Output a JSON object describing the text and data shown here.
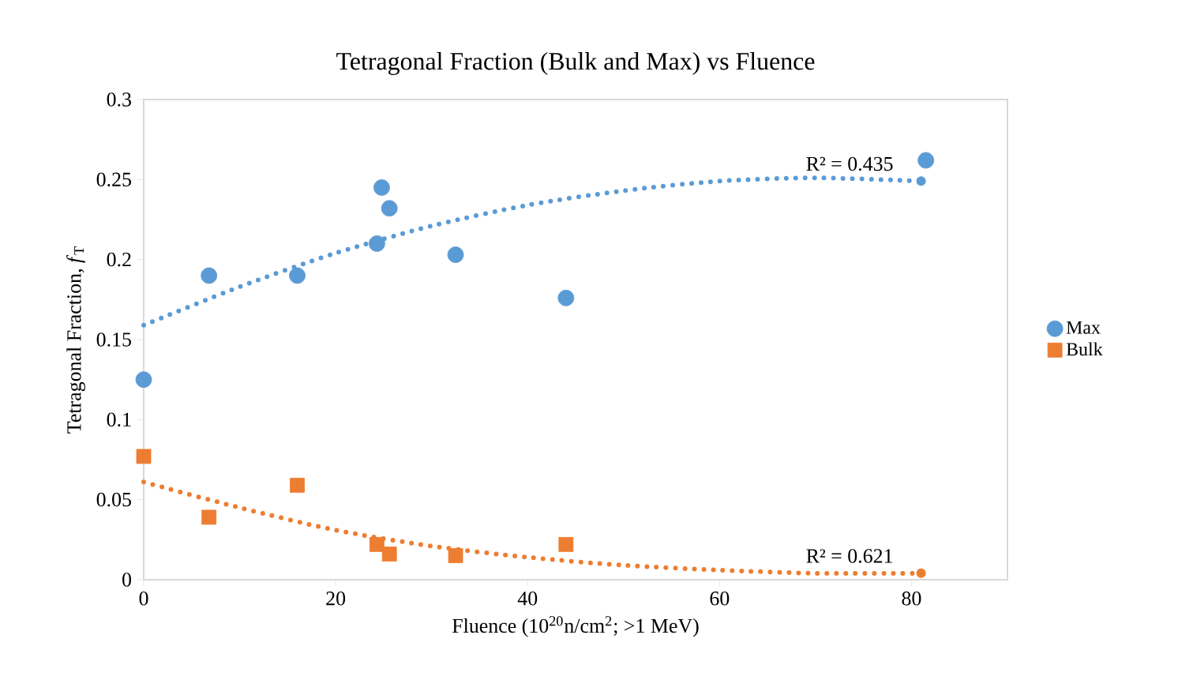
{
  "chart_data": {
    "type": "scatter",
    "title": "Tetragonal Fraction (Bulk and Max) vs Fluence",
    "xlabel": "Fluence (10$^{20}$n/cm$^{2}$; >1 MeV)",
    "ylabel": "Tetragonal Fraction, *f*$_{T}$",
    "series": [
      {
        "name": "Max",
        "color": "#5b9bd5",
        "marker": "circle",
        "x": [
          0,
          6.8,
          16,
          24.3,
          24.8,
          25.6,
          32.5,
          44,
          81.5
        ],
        "values": [
          0.125,
          0.19,
          0.19,
          0.21,
          0.245,
          0.232,
          0.203,
          0.176,
          0.262
        ]
      },
      {
        "name": "Bulk",
        "color": "#ed7d31",
        "marker": "square",
        "x": [
          0,
          6.8,
          16,
          24.3,
          25.6,
          32.5,
          44
        ],
        "values": [
          0.077,
          0.039,
          0.059,
          0.022,
          0.016,
          0.015,
          0.022
        ]
      },
      {
        "type": "line",
        "color": "#5b9bd5",
        "marker": "none",
        "line_style": "dotted",
        "x": [
          0,
          10,
          20,
          30,
          40,
          50,
          60,
          70,
          81
        ],
        "values": [
          0.159,
          0.183,
          0.204,
          0.221,
          0.234,
          0.243,
          0.249,
          0.251,
          0.249
        ]
      },
      {
        "type": "line",
        "color": "#ed7d31",
        "marker": "none",
        "line_style": "dotted",
        "x": [
          0,
          10,
          20,
          30,
          40,
          50,
          60,
          70,
          81
        ],
        "values": [
          0.061,
          0.045,
          0.031,
          0.021,
          0.014,
          0.009,
          0.006,
          0.004,
          0.004
        ]
      }
    ],
    "annotations": [
      "R² = 0.435",
      "R² = 0.621"
    ],
    "xlim": [
      0,
      90
    ],
    "ylim": [
      0,
      0.3
    ],
    "xticks": [
      0,
      20,
      40,
      60,
      80
    ],
    "yticks": [
      0,
      0.05,
      0.1,
      0.15,
      0.2,
      0.25,
      0.3
    ],
    "grid": false,
    "legend": "right"
  }
}
